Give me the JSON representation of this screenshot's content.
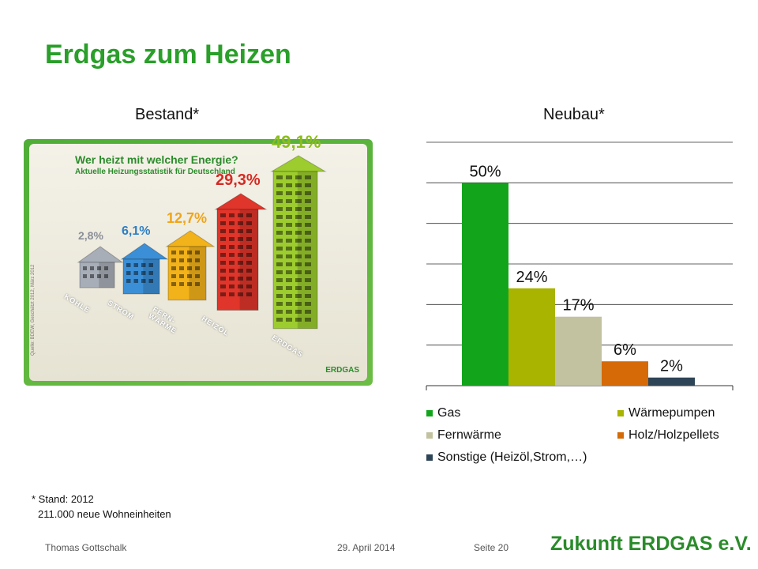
{
  "slide": {
    "title": "Erdgas zum Heizen",
    "subtitle_left": "Bestand*",
    "subtitle_right": "Neubau*",
    "footnote_line1": "* Stand: 2012",
    "footnote_line2": "211.000 neue Wohneinheiten",
    "footer_author": "Thomas Gottschalk",
    "footer_date": "29. April 2014",
    "footer_page": "Seite 20",
    "brand": "Zukunft ERDGAS e.V."
  },
  "infographic": {
    "title": "Wer heizt mit welcher Energie?",
    "subtitle": "Aktuelle Heizungsstatistik für Deutschland",
    "source": "Quelle: BDEW, Geschätzt 2012, März 2012",
    "logo": "ERDGAS",
    "items": [
      {
        "label": "KOHLE",
        "percent": "2,8%",
        "value": 2.8,
        "color": "#a8aeb8"
      },
      {
        "label": "STROM",
        "percent": "6,1%",
        "value": 6.1,
        "color": "#3b8fd6"
      },
      {
        "label": "FERN-\nWÄRME",
        "percent": "12,7%",
        "value": 12.7,
        "color": "#f2b21a"
      },
      {
        "label": "HEIZÖL",
        "percent": "29,3%",
        "value": 29.3,
        "color": "#e0352a"
      },
      {
        "label": "ERDGAS",
        "percent": "49,1%",
        "value": 49.1,
        "color": "#9ccc2e"
      }
    ]
  },
  "chart_data": {
    "type": "bar",
    "categories": [
      "Gas",
      "Wärmepumpen",
      "Fernwärme",
      "Holz/Holzpellets",
      "Sonstige (Heizöl,Strom,…)"
    ],
    "values": [
      50,
      24,
      17,
      6,
      2
    ],
    "data_labels": [
      "50%",
      "24%",
      "17%",
      "6%",
      "2%"
    ],
    "colors": [
      "#12a51c",
      "#a8b400",
      "#c2c2a0",
      "#d56a06",
      "#2e4457"
    ],
    "ylim": [
      0,
      60
    ],
    "grid": true,
    "legend_position": "bottom",
    "title": "",
    "xlabel": "",
    "ylabel": ""
  }
}
